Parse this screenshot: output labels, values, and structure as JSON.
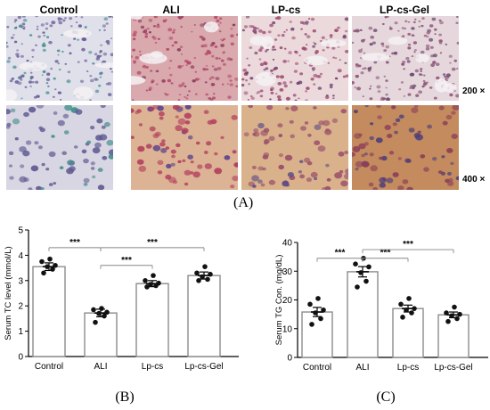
{
  "panel_a": {
    "columns": [
      "Control",
      "ALI",
      "LP-cs",
      "LP-cs-Gel"
    ],
    "magnifications": [
      "200 ×",
      "400 ×"
    ],
    "label": "(A)",
    "tiles": [
      {
        "row": 0,
        "col": 0,
        "bg": "#dfe0ea",
        "cell": "#6b5e9a",
        "accent": "#3f8a8c"
      },
      {
        "row": 0,
        "col": 1,
        "bg": "#d9a9ad",
        "cell": "#b54a6a",
        "accent": "#8b3a5c"
      },
      {
        "row": 0,
        "col": 2,
        "bg": "#ecd9dc",
        "cell": "#9c4d72",
        "accent": "#6a3f6e"
      },
      {
        "row": 0,
        "col": 3,
        "bg": "#e6d7dc",
        "cell": "#8d5577",
        "accent": "#6b4a70"
      },
      {
        "row": 1,
        "col": 0,
        "bg": "#d8d6e2",
        "cell": "#5e5a92",
        "accent": "#3f8c8a"
      },
      {
        "row": 1,
        "col": 1,
        "bg": "#dcb394",
        "cell": "#b33f5f",
        "accent": "#5a3f8c"
      },
      {
        "row": 1,
        "col": 2,
        "bg": "#d9b28c",
        "cell": "#9a4f6a",
        "accent": "#5b4a86"
      },
      {
        "row": 1,
        "col": 3,
        "bg": "#c38b5e",
        "cell": "#8c3e58",
        "accent": "#4c3f7a"
      }
    ]
  },
  "chart_data": [
    {
      "type": "bar",
      "panel_label": "(B)",
      "categories": [
        "Control",
        "ALI",
        "Lp-cs",
        "Lp-cs-Gel"
      ],
      "values": [
        3.55,
        1.72,
        2.88,
        3.2
      ],
      "sem": [
        0.15,
        0.15,
        0.12,
        0.14
      ],
      "points": [
        [
          3.3,
          3.45,
          3.55,
          3.6,
          3.75,
          3.85
        ],
        [
          1.35,
          1.6,
          1.7,
          1.75,
          1.85,
          1.9
        ],
        [
          2.75,
          2.8,
          2.85,
          2.9,
          3.0,
          3.2
        ],
        [
          3.0,
          3.05,
          3.15,
          3.25,
          3.3,
          3.55
        ]
      ],
      "ylabel": "Serum TC level (mmol/L)",
      "ylim": [
        0,
        5
      ],
      "yticks": [
        0,
        1,
        2,
        3,
        4,
        5
      ],
      "significance": [
        {
          "from": 0,
          "to": 1,
          "level": 4.3,
          "label": "***"
        },
        {
          "from": 1,
          "to": 2,
          "level": 3.6,
          "label": "***"
        },
        {
          "from": 1,
          "to": 3,
          "level": 4.3,
          "label": "***"
        }
      ]
    },
    {
      "type": "bar",
      "panel_label": "(C)",
      "categories": [
        "Control",
        "ALI",
        "Lp-cs",
        "Lp-cs-Gel"
      ],
      "values": [
        15.8,
        29.8,
        17.0,
        14.8
      ],
      "sem": [
        1.6,
        1.8,
        1.2,
        1.0
      ],
      "points": [
        [
          11.5,
          13.5,
          15.5,
          16.5,
          18.5,
          20.5
        ],
        [
          24.5,
          26.5,
          29.5,
          31.5,
          32.5,
          34.5
        ],
        [
          14.0,
          15.5,
          16.5,
          17.0,
          18.5,
          20.5
        ],
        [
          12.5,
          13.5,
          14.5,
          15.0,
          15.5,
          17.5
        ]
      ],
      "ylabel": "Serum TG Con. (mg/dL)",
      "ylim": [
        0,
        40
      ],
      "yticks": [
        0,
        10,
        20,
        30,
        40
      ],
      "significance": [
        {
          "from": 0,
          "to": 1,
          "level": 34.5,
          "label": "***"
        },
        {
          "from": 1,
          "to": 2,
          "level": 34.5,
          "label": "***"
        },
        {
          "from": 1,
          "to": 3,
          "level": 37.5,
          "label": "***"
        }
      ]
    }
  ]
}
